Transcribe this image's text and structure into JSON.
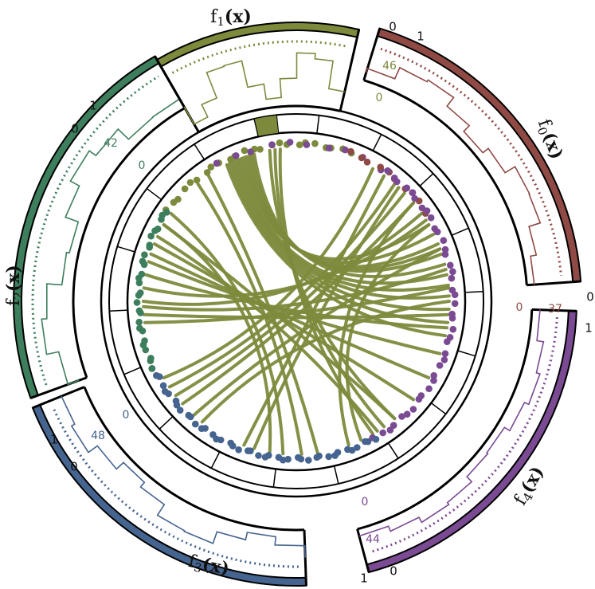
{
  "chart_data": {
    "type": "circos",
    "colors": {
      "f0": "#8f4a45",
      "f1": "#7d8a3c",
      "f2": "#3d7e5c",
      "f3": "#45648f",
      "f4": "#7a4a93",
      "link": "#7d8a3c"
    },
    "sectors": [
      {
        "id": "f0",
        "name_base": "f",
        "name_sub": "0",
        "name_arg": "(x)",
        "tick_start": "1",
        "tick_end": "0",
        "count_start": "0",
        "count_end": "37"
      },
      {
        "id": "f4",
        "name_base": "f",
        "name_sub": "4",
        "name_arg": "(x)",
        "tick_start": "1",
        "tick_end": "0",
        "count_start": "0",
        "count_end": "44"
      },
      {
        "id": "f3",
        "name_base": "f",
        "name_sub": "3",
        "name_arg": "(x)",
        "tick_start": "1",
        "tick_end": "0",
        "count_start": "0",
        "count_end": "48"
      },
      {
        "id": "f2",
        "name_base": "f",
        "name_sub": "2",
        "name_arg": "(x)",
        "tick_start": "1",
        "tick_end": "0",
        "count_start": "0",
        "count_end": "42"
      },
      {
        "id": "f1",
        "name_base": "f",
        "name_sub": "1",
        "name_arg": "(x)",
        "tick_start": "1",
        "tick_end": "0",
        "count_start": "0",
        "count_end": "46"
      }
    ],
    "link_count": 40
  }
}
